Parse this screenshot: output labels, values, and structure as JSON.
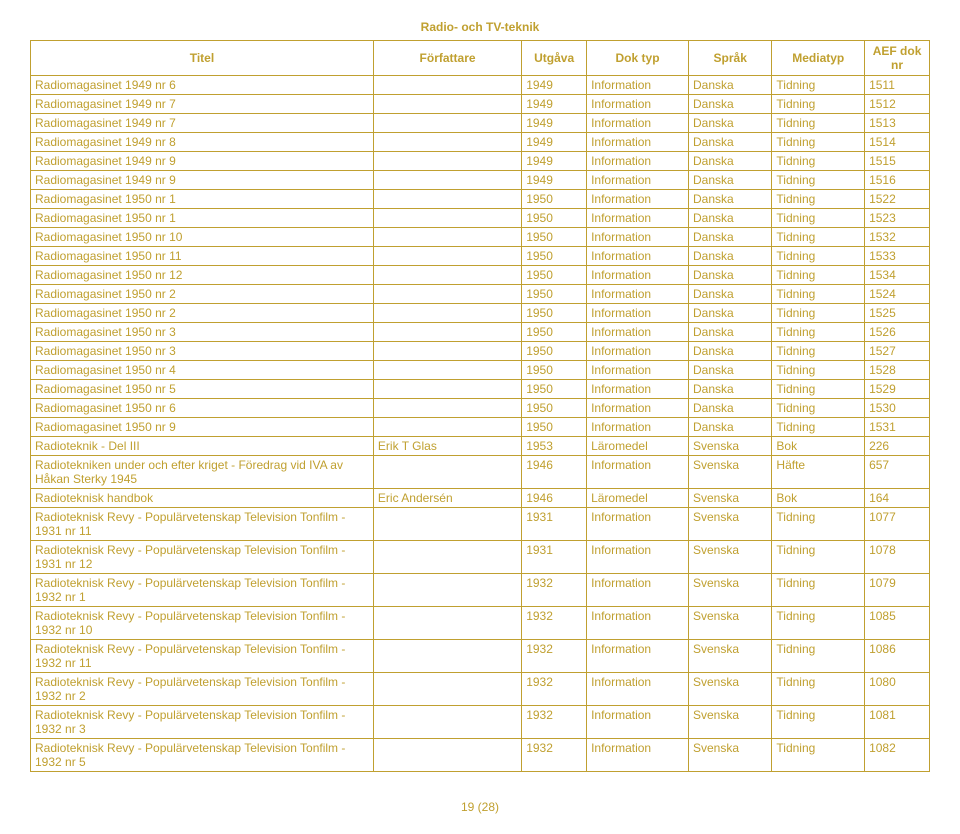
{
  "page_title": "Radio- och TV-teknik",
  "footer": "19 (28)",
  "colors": {
    "text": "#c0a030",
    "border": "#c0a030",
    "background": "#ffffff"
  },
  "table": {
    "columns": [
      "Titel",
      "Författare",
      "Utgåva",
      "Dok typ",
      "Språk",
      "Mediatyp",
      "AEF dok nr"
    ],
    "rows": [
      [
        "Radiomagasinet 1949 nr 6",
        "",
        "1949",
        "Information",
        "Danska",
        "Tidning",
        "1511"
      ],
      [
        "Radiomagasinet 1949 nr 7",
        "",
        "1949",
        "Information",
        "Danska",
        "Tidning",
        "1512"
      ],
      [
        "Radiomagasinet 1949 nr 7",
        "",
        "1949",
        "Information",
        "Danska",
        "Tidning",
        "1513"
      ],
      [
        "Radiomagasinet 1949 nr 8",
        "",
        "1949",
        "Information",
        "Danska",
        "Tidning",
        "1514"
      ],
      [
        "Radiomagasinet 1949 nr 9",
        "",
        "1949",
        "Information",
        "Danska",
        "Tidning",
        "1515"
      ],
      [
        "Radiomagasinet 1949 nr 9",
        "",
        "1949",
        "Information",
        "Danska",
        "Tidning",
        "1516"
      ],
      [
        "Radiomagasinet 1950 nr 1",
        "",
        "1950",
        "Information",
        "Danska",
        "Tidning",
        "1522"
      ],
      [
        "Radiomagasinet 1950 nr 1",
        "",
        "1950",
        "Information",
        "Danska",
        "Tidning",
        "1523"
      ],
      [
        "Radiomagasinet 1950 nr 10",
        "",
        "1950",
        "Information",
        "Danska",
        "Tidning",
        "1532"
      ],
      [
        "Radiomagasinet 1950 nr 11",
        "",
        "1950",
        "Information",
        "Danska",
        "Tidning",
        "1533"
      ],
      [
        "Radiomagasinet 1950 nr 12",
        "",
        "1950",
        "Information",
        "Danska",
        "Tidning",
        "1534"
      ],
      [
        "Radiomagasinet 1950 nr 2",
        "",
        "1950",
        "Information",
        "Danska",
        "Tidning",
        "1524"
      ],
      [
        "Radiomagasinet 1950 nr 2",
        "",
        "1950",
        "Information",
        "Danska",
        "Tidning",
        "1525"
      ],
      [
        "Radiomagasinet 1950 nr 3",
        "",
        "1950",
        "Information",
        "Danska",
        "Tidning",
        "1526"
      ],
      [
        "Radiomagasinet 1950 nr 3",
        "",
        "1950",
        "Information",
        "Danska",
        "Tidning",
        "1527"
      ],
      [
        "Radiomagasinet 1950 nr 4",
        "",
        "1950",
        "Information",
        "Danska",
        "Tidning",
        "1528"
      ],
      [
        "Radiomagasinet 1950 nr 5",
        "",
        "1950",
        "Information",
        "Danska",
        "Tidning",
        "1529"
      ],
      [
        "Radiomagasinet 1950 nr 6",
        "",
        "1950",
        "Information",
        "Danska",
        "Tidning",
        "1530"
      ],
      [
        "Radiomagasinet 1950 nr 9",
        "",
        "1950",
        "Information",
        "Danska",
        "Tidning",
        "1531"
      ],
      [
        "Radioteknik - Del III",
        "Erik T Glas",
        "1953",
        "Läromedel",
        "Svenska",
        "Bok",
        "226"
      ],
      [
        "Radiotekniken under och efter kriget - Föredrag vid IVA av Håkan Sterky 1945",
        "",
        "1946",
        "Information",
        "Svenska",
        "Häfte",
        "657"
      ],
      [
        "Radioteknisk handbok",
        "Eric Andersén",
        "1946",
        "Läromedel",
        "Svenska",
        "Bok",
        "164"
      ],
      [
        "Radioteknisk Revy - Populärvetenskap Television Tonfilm - 1931 nr 11",
        "",
        "1931",
        "Information",
        "Svenska",
        "Tidning",
        "1077"
      ],
      [
        "Radioteknisk Revy - Populärvetenskap Television Tonfilm - 1931 nr 12",
        "",
        "1931",
        "Information",
        "Svenska",
        "Tidning",
        "1078"
      ],
      [
        "Radioteknisk Revy - Populärvetenskap Television Tonfilm - 1932 nr 1",
        "",
        "1932",
        "Information",
        "Svenska",
        "Tidning",
        "1079"
      ],
      [
        "Radioteknisk Revy - Populärvetenskap Television Tonfilm - 1932 nr 10",
        "",
        "1932",
        "Information",
        "Svenska",
        "Tidning",
        "1085"
      ],
      [
        "Radioteknisk Revy - Populärvetenskap Television Tonfilm - 1932 nr 11",
        "",
        "1932",
        "Information",
        "Svenska",
        "Tidning",
        "1086"
      ],
      [
        "Radioteknisk Revy - Populärvetenskap Television Tonfilm - 1932 nr 2",
        "",
        "1932",
        "Information",
        "Svenska",
        "Tidning",
        "1080"
      ],
      [
        "Radioteknisk Revy - Populärvetenskap Television Tonfilm - 1932 nr 3",
        "",
        "1932",
        "Information",
        "Svenska",
        "Tidning",
        "1081"
      ],
      [
        "Radioteknisk Revy - Populärvetenskap Television Tonfilm - 1932 nr 5",
        "",
        "1932",
        "Information",
        "Svenska",
        "Tidning",
        "1082"
      ]
    ]
  }
}
